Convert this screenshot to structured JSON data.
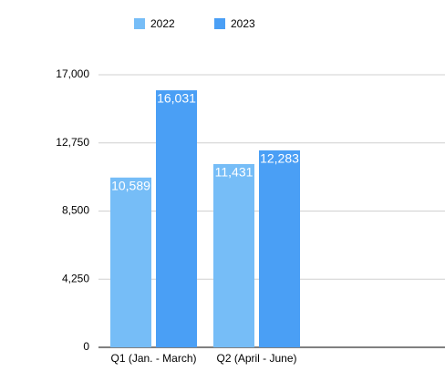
{
  "chart_data": {
    "type": "bar",
    "categories": [
      "Q1 (Jan. - March)",
      "Q2 (April - June)"
    ],
    "series": [
      {
        "name": "2022",
        "color": "#76bdf7",
        "values": [
          10589,
          11431
        ],
        "value_labels": [
          "10,589",
          "11,431"
        ]
      },
      {
        "name": "2023",
        "color": "#4a9ff5",
        "values": [
          16031,
          12283
        ],
        "value_labels": [
          "16,031",
          "12,283"
        ]
      }
    ],
    "ylim": [
      0,
      17000
    ],
    "yticks": [
      0,
      {
        "value": 4250,
        "label": "4,250"
      },
      {
        "value": 8500,
        "label": "8,500"
      },
      {
        "value": 12750,
        "label": "12,750"
      },
      {
        "value": 17000,
        "label": "17,000"
      }
    ],
    "grid": true,
    "legend": "top"
  }
}
